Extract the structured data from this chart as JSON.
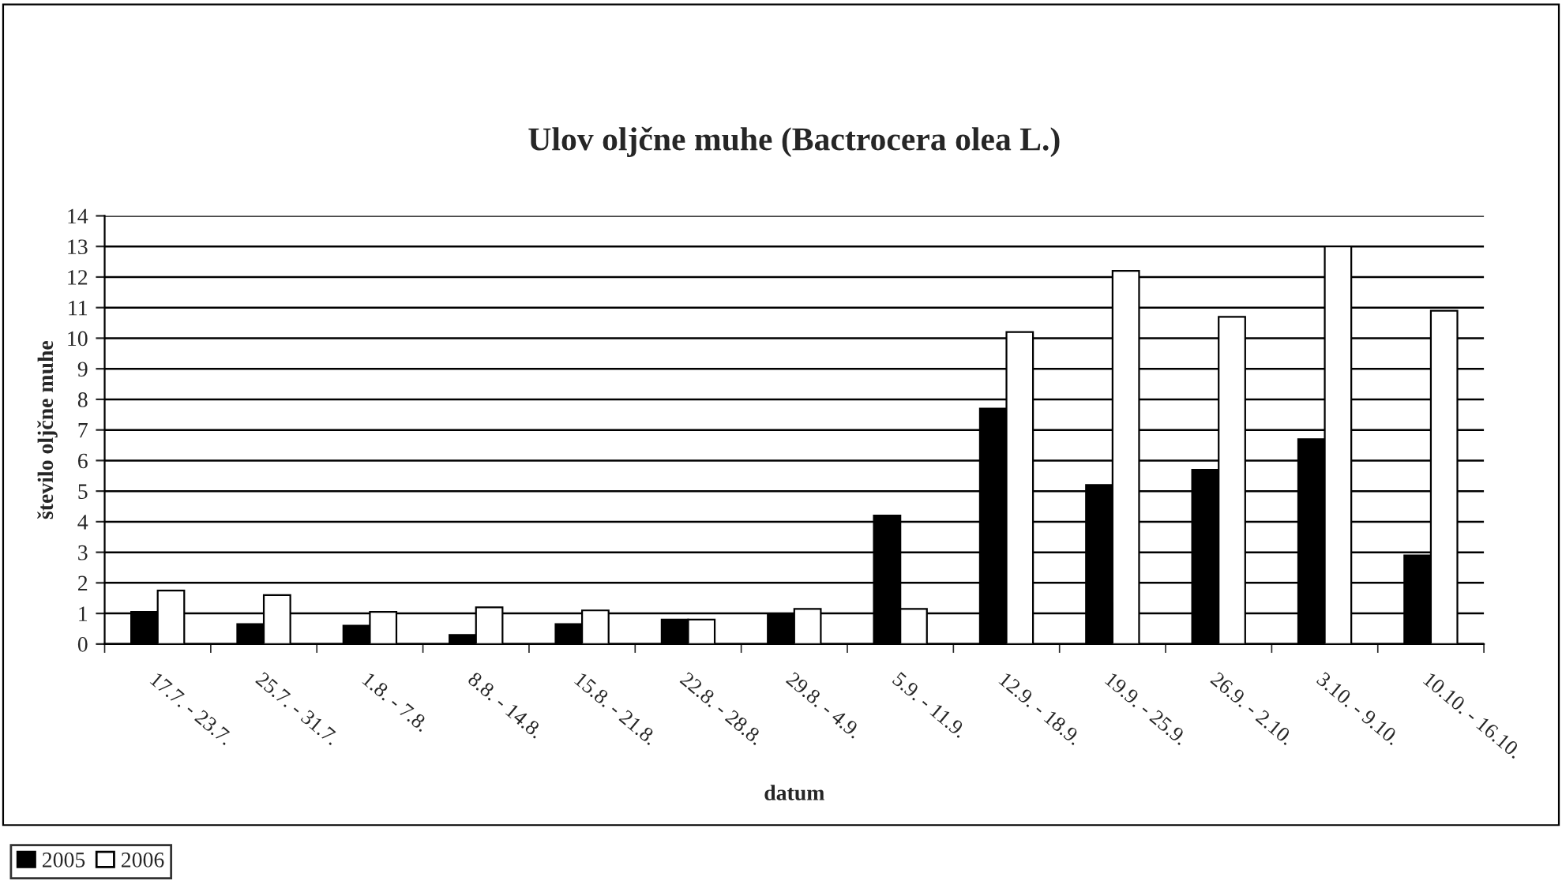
{
  "chart_data": {
    "type": "bar",
    "title": "Ulov oljčne muhe (Bactrocera olea L.)",
    "xlabel": "datum",
    "ylabel": "število oljčne muhe",
    "categories": [
      "17.7. - 23.7.",
      "25.7. - 31.7.",
      "1.8. - 7.8.",
      "8.8. - 14.8.",
      "15.8. - 21.8.",
      "22.8. - 28.8.",
      "29.8. - 4.9.",
      "5.9. - 11.9.",
      "12.9. - 18.9.",
      "19.9. - 25.9.",
      "26.9. - 2.10.",
      "3.10. - 9.10.",
      "10.10. - 16.10."
    ],
    "series": [
      {
        "name": "2005",
        "color": "#000000",
        "values": [
          1.05,
          0.65,
          0.6,
          0.3,
          0.65,
          0.8,
          0.95,
          4.2,
          7.7,
          5.2,
          5.7,
          6.7,
          2.9
        ]
      },
      {
        "name": "2006",
        "color": "#ffffff",
        "values": [
          1.75,
          1.6,
          1.05,
          1.2,
          1.1,
          0.8,
          1.15,
          1.15,
          10.2,
          12.2,
          10.7,
          13.0,
          10.9
        ]
      }
    ],
    "ylim": [
      0,
      14
    ],
    "yticks": [
      0,
      1,
      2,
      3,
      4,
      5,
      6,
      7,
      8,
      9,
      10,
      11,
      12,
      13,
      14
    ],
    "grid": "y",
    "legend": "bottom left"
  }
}
